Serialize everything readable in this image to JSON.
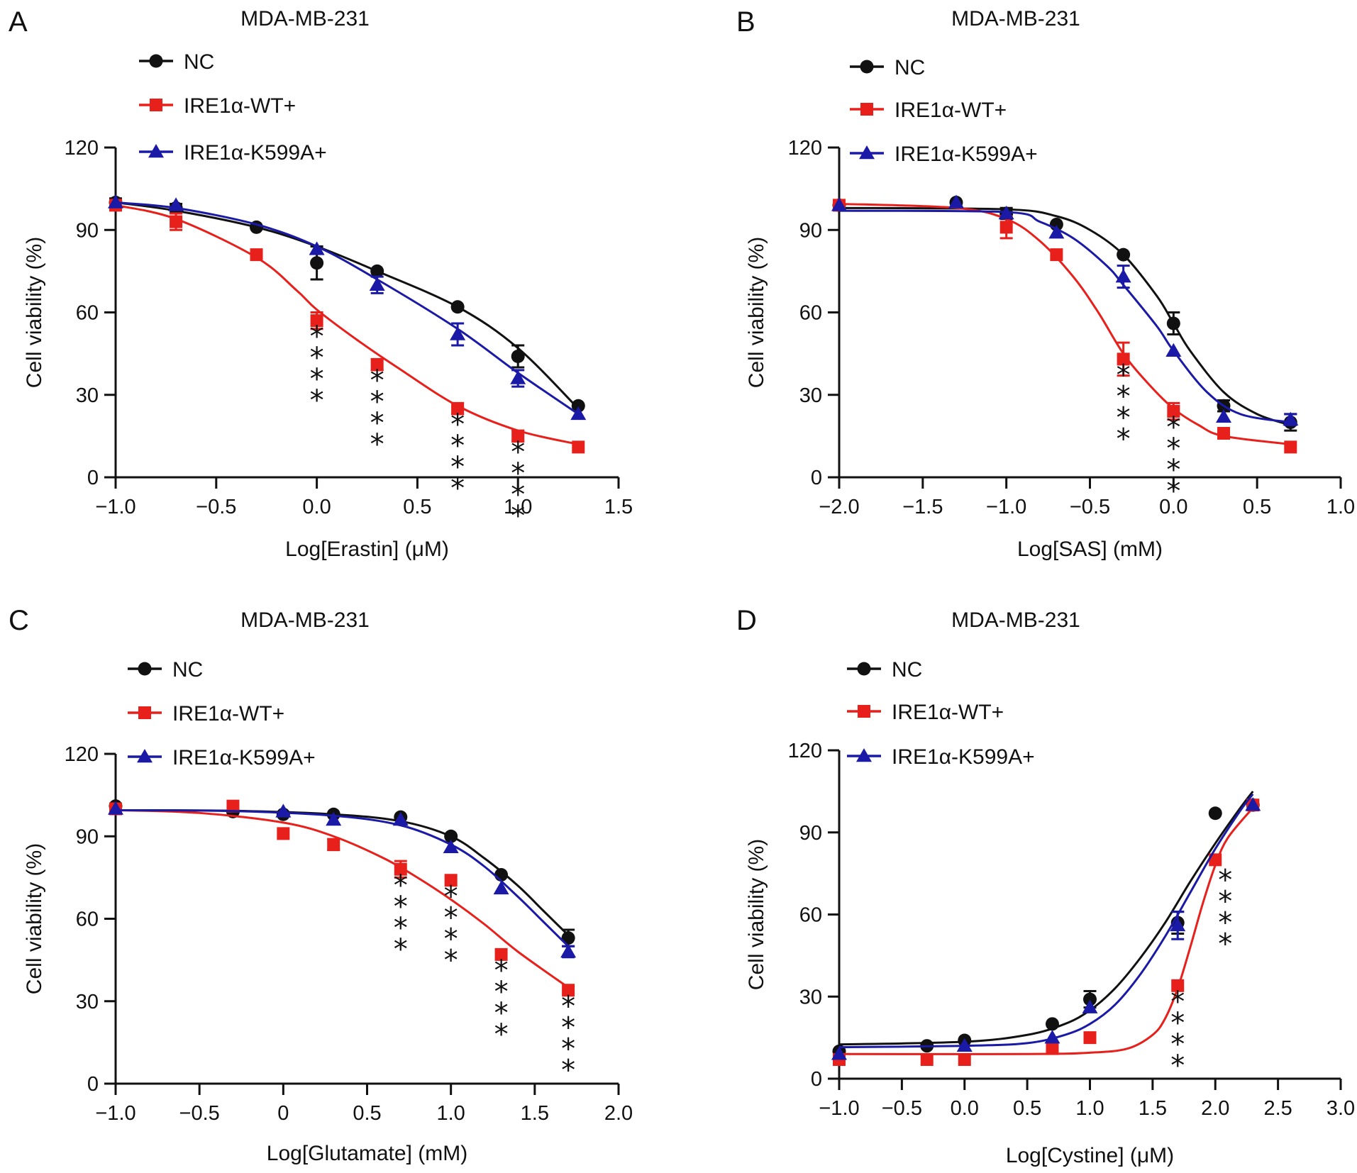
{
  "colors": {
    "NC": "#111111",
    "IRE1α-WT+": "#e8201c",
    "IRE1α-K599A+": "#1a1aa6"
  },
  "chart_data": [
    {
      "panel": "A",
      "type": "line",
      "title": "MDA-MB-231",
      "xlabel": "Log[Erastin] (μM)",
      "ylabel": "Cell viability (%)",
      "xlim": [
        -1.0,
        1.5
      ],
      "ylim": [
        0,
        120
      ],
      "xticks": [
        -1.0,
        -0.5,
        0.0,
        0.5,
        1.0,
        1.5
      ],
      "xtick_labels": [
        "−1.0",
        "−0.5",
        "0.0",
        "0.5",
        "1.0",
        "1.5"
      ],
      "yticks": [
        0,
        30,
        60,
        90,
        120
      ],
      "ytick_labels": [
        "0",
        "30",
        "60",
        "90",
        "120"
      ],
      "legend": [
        "NC",
        "IRE1α-WT+",
        "IRE1α-K599A+"
      ],
      "series": [
        {
          "name": "NC",
          "marker": "circle",
          "x": [
            -1.0,
            -0.7,
            -0.3,
            0.0,
            0.3,
            0.7,
            1.0,
            1.3
          ],
          "y": [
            100,
            98,
            91,
            78,
            75,
            62,
            44,
            26
          ],
          "err": [
            1.5,
            1.5,
            1,
            6,
            1,
            1,
            4,
            1
          ],
          "curve": [
            [
              -1.0,
              100
            ],
            [
              -0.7,
              97
            ],
            [
              -0.3,
              91
            ],
            [
              0.0,
              84
            ],
            [
              0.3,
              75
            ],
            [
              0.7,
              62
            ],
            [
              1.0,
              47
            ],
            [
              1.3,
              25
            ]
          ]
        },
        {
          "name": "IRE1α-WT+",
          "marker": "square",
          "x": [
            -1.0,
            -0.7,
            -0.3,
            0.0,
            0.3,
            0.7,
            1.0,
            1.3
          ],
          "y": [
            99,
            93,
            81,
            57,
            41,
            25,
            15,
            11
          ],
          "err": [
            1,
            3,
            1,
            3,
            2,
            2,
            2,
            1
          ],
          "curve": [
            [
              -1.0,
              99
            ],
            [
              -0.7,
              94
            ],
            [
              -0.3,
              80
            ],
            [
              -0.1,
              68
            ],
            [
              0.0,
              61
            ],
            [
              0.2,
              50
            ],
            [
              0.4,
              40
            ],
            [
              0.7,
              26
            ],
            [
              1.0,
              17
            ],
            [
              1.3,
              12
            ]
          ]
        },
        {
          "name": "IRE1α-K599A+",
          "marker": "triangle",
          "x": [
            -1.0,
            -0.7,
            0.0,
            0.3,
            0.7,
            1.0,
            1.3
          ],
          "y": [
            100,
            99,
            83,
            70,
            52,
            36,
            23
          ],
          "err": [
            1,
            1,
            1,
            3,
            4,
            3,
            1
          ],
          "curve": [
            [
              -1.0,
              100
            ],
            [
              -0.7,
              98
            ],
            [
              -0.3,
              92
            ],
            [
              0.0,
              84
            ],
            [
              0.3,
              72
            ],
            [
              0.7,
              54
            ],
            [
              1.0,
              38
            ],
            [
              1.3,
              23
            ]
          ]
        }
      ],
      "annotations": [
        {
          "x": 0.0,
          "text": "****"
        },
        {
          "x": 0.3,
          "text": "****"
        },
        {
          "x": 0.7,
          "text": "****"
        },
        {
          "x": 1.0,
          "text": "****"
        }
      ]
    },
    {
      "panel": "B",
      "type": "line",
      "title": "MDA-MB-231",
      "xlabel": "Log[SAS] (mM)",
      "ylabel": "Cell viability (%)",
      "xlim": [
        -2.0,
        1.0
      ],
      "ylim": [
        0,
        120
      ],
      "xticks": [
        -2.0,
        -1.5,
        -1.0,
        -0.5,
        0.0,
        0.5,
        1.0
      ],
      "xtick_labels": [
        "−2.0",
        "−1.5",
        "−1.0",
        "−0.5",
        "0.0",
        "0.5",
        "1.0"
      ],
      "yticks": [
        0,
        30,
        60,
        90,
        120
      ],
      "ytick_labels": [
        "0",
        "30",
        "60",
        "90",
        "120"
      ],
      "legend": [
        "NC",
        "IRE1α-WT+",
        "IRE1α-K599A+"
      ],
      "series": [
        {
          "name": "NC",
          "marker": "circle",
          "x": [
            -2.0,
            -1.3,
            -1.0,
            -0.7,
            -0.3,
            0.0,
            0.3,
            0.7
          ],
          "y": [
            99,
            100,
            96,
            92,
            81,
            56,
            26,
            20
          ],
          "err": [
            1,
            1,
            2,
            1,
            1,
            4,
            2,
            3
          ],
          "curve": [
            [
              -2.0,
              98
            ],
            [
              -1.0,
              97.5
            ],
            [
              -0.7,
              95
            ],
            [
              -0.5,
              90
            ],
            [
              -0.3,
              81
            ],
            [
              -0.1,
              66
            ],
            [
              0.0,
              56
            ],
            [
              0.1,
              46
            ],
            [
              0.3,
              31
            ],
            [
              0.5,
              23
            ],
            [
              0.7,
              19
            ]
          ]
        },
        {
          "name": "IRE1α-WT+",
          "marker": "square",
          "x": [
            -2.0,
            -1.0,
            -0.7,
            -0.3,
            0.0,
            0.3,
            0.7
          ],
          "y": [
            99,
            91,
            81,
            43,
            24,
            16,
            11
          ],
          "err": [
            1,
            4,
            1,
            6,
            3,
            1,
            1
          ],
          "curve": [
            [
              -2.0,
              99.5
            ],
            [
              -1.3,
              98
            ],
            [
              -1.0,
              94
            ],
            [
              -0.8,
              86
            ],
            [
              -0.6,
              73
            ],
            [
              -0.45,
              60
            ],
            [
              -0.3,
              45
            ],
            [
              -0.15,
              34
            ],
            [
              0.0,
              25
            ],
            [
              0.15,
              19
            ],
            [
              0.3,
              15
            ],
            [
              0.7,
              12
            ]
          ]
        },
        {
          "name": "IRE1α-K599A+",
          "marker": "triangle",
          "x": [
            -2.0,
            -1.3,
            -1.0,
            -0.7,
            -0.3,
            0.0,
            0.3,
            0.7
          ],
          "y": [
            99,
            100,
            96,
            89,
            73,
            46,
            22,
            21
          ],
          "err": [
            1,
            1,
            1,
            1,
            4,
            1,
            1,
            2
          ],
          "curve": [
            [
              -2.0,
              97
            ],
            [
              -1.0,
              96.5
            ],
            [
              -0.8,
              93
            ],
            [
              -0.6,
              87
            ],
            [
              -0.4,
              77
            ],
            [
              -0.3,
              70
            ],
            [
              -0.1,
              55
            ],
            [
              0.0,
              46
            ],
            [
              0.2,
              31
            ],
            [
              0.4,
              23
            ],
            [
              0.7,
              20
            ]
          ]
        }
      ],
      "annotations": [
        {
          "x": -0.3,
          "text": "****"
        },
        {
          "x": 0.0,
          "text": "****"
        }
      ]
    },
    {
      "panel": "C",
      "type": "line",
      "title": "MDA-MB-231",
      "xlabel": "Log[Glutamate] (mM)",
      "ylabel": "Cell viability (%)",
      "xlim": [
        -1.0,
        2.0
      ],
      "ylim": [
        0,
        120
      ],
      "xticks": [
        -1.0,
        -0.5,
        0.0,
        0.5,
        1.0,
        1.5,
        2.0
      ],
      "xtick_labels": [
        "−1.0",
        "−0.5",
        "0",
        "0.5",
        "1.0",
        "1.5",
        "2.0"
      ],
      "yticks": [
        0,
        30,
        60,
        90,
        120
      ],
      "ytick_labels": [
        "0",
        "30",
        "60",
        "90",
        "120"
      ],
      "legend": [
        "NC",
        "IRE1α-WT+",
        "IRE1α-K599A+"
      ],
      "series": [
        {
          "name": "NC",
          "marker": "circle",
          "x": [
            -1.0,
            -0.3,
            0.0,
            0.3,
            0.7,
            1.0,
            1.3,
            1.7
          ],
          "y": [
            101,
            99,
            98,
            98,
            97,
            90,
            76,
            53
          ],
          "err": [
            1,
            1,
            1,
            1,
            1,
            1,
            1,
            3
          ],
          "curve": [
            [
              -1.0,
              99.5
            ],
            [
              -0.3,
              99.3
            ],
            [
              0.3,
              98
            ],
            [
              0.7,
              95.5
            ],
            [
              1.0,
              90
            ],
            [
              1.2,
              82
            ],
            [
              1.4,
              72
            ],
            [
              1.55,
              63
            ],
            [
              1.7,
              54
            ]
          ]
        },
        {
          "name": "IRE1α-WT+",
          "marker": "square",
          "x": [
            -1.0,
            -0.3,
            0.0,
            0.3,
            0.7,
            1.0,
            1.3,
            1.7
          ],
          "y": [
            100,
            101,
            91,
            87,
            78,
            74,
            47,
            34
          ],
          "err": [
            1,
            1,
            1,
            2,
            3,
            1,
            1,
            1
          ],
          "curve": [
            [
              -1.0,
              99.5
            ],
            [
              -0.5,
              98.5
            ],
            [
              0.0,
              95
            ],
            [
              0.3,
              90
            ],
            [
              0.6,
              82
            ],
            [
              0.8,
              75
            ],
            [
              1.0,
              67
            ],
            [
              1.2,
              58
            ],
            [
              1.4,
              48
            ],
            [
              1.7,
              35
            ]
          ]
        },
        {
          "name": "IRE1α-K599A+",
          "marker": "triangle",
          "x": [
            -1.0,
            0.0,
            0.3,
            0.7,
            1.0,
            1.3,
            1.7
          ],
          "y": [
            100,
            99,
            96,
            96,
            86,
            71,
            48
          ],
          "err": [
            1,
            1,
            1,
            1,
            1,
            1,
            2
          ],
          "curve": [
            [
              -1.0,
              99.5
            ],
            [
              -0.3,
              99.2
            ],
            [
              0.3,
              97.5
            ],
            [
              0.7,
              94
            ],
            [
              1.0,
              87
            ],
            [
              1.2,
              79
            ],
            [
              1.4,
              68
            ],
            [
              1.55,
              59
            ],
            [
              1.7,
              50
            ]
          ]
        }
      ],
      "annotations": [
        {
          "x": 0.7,
          "text": "****"
        },
        {
          "x": 1.0,
          "text": "****"
        },
        {
          "x": 1.3,
          "text": "****"
        },
        {
          "x": 1.7,
          "text": "****"
        }
      ]
    },
    {
      "panel": "D",
      "type": "line",
      "title": "MDA-MB-231",
      "xlabel": "Log[Cystine] (μM)",
      "ylabel": "Cell viability (%)",
      "xlim": [
        -1.0,
        3.0
      ],
      "ylim": [
        0,
        120
      ],
      "xticks": [
        -1.0,
        -0.5,
        0.0,
        0.5,
        1.0,
        1.5,
        2.0,
        2.5,
        3.0
      ],
      "xtick_labels": [
        "−1.0",
        "−0.5",
        "0.0",
        "0.5",
        "1.0",
        "1.5",
        "2.0",
        "2.5",
        "3.0"
      ],
      "yticks": [
        0,
        30,
        60,
        90,
        120
      ],
      "ytick_labels": [
        "0",
        "30",
        "60",
        "90",
        "120"
      ],
      "legend": [
        "NC",
        "IRE1α-WT+",
        "IRE1α-K599A+"
      ],
      "series": [
        {
          "name": "NC",
          "marker": "circle",
          "x": [
            -1.0,
            -0.3,
            0.0,
            0.7,
            1.0,
            1.7,
            2.0,
            2.3
          ],
          "y": [
            10,
            12,
            14,
            20,
            29,
            57,
            97,
            100
          ],
          "err": [
            1,
            1,
            1,
            1,
            3,
            4,
            1,
            1
          ],
          "curve": [
            [
              -1.0,
              12.5
            ],
            [
              0.0,
              13.5
            ],
            [
              0.5,
              16
            ],
            [
              0.8,
              20
            ],
            [
              1.0,
              25
            ],
            [
              1.2,
              33
            ],
            [
              1.4,
              44
            ],
            [
              1.6,
              57
            ],
            [
              1.8,
              72
            ],
            [
              2.0,
              86
            ],
            [
              2.2,
              99
            ],
            [
              2.3,
              105
            ]
          ]
        },
        {
          "name": "IRE1α-WT+",
          "marker": "square",
          "x": [
            -1.0,
            -0.3,
            0.0,
            0.7,
            1.0,
            1.7,
            2.0,
            2.3
          ],
          "y": [
            7,
            7,
            7,
            11,
            15,
            34,
            80,
            100
          ],
          "err": [
            1,
            1,
            1,
            1,
            1,
            1,
            1,
            1
          ],
          "curve": [
            [
              -1.0,
              9
            ],
            [
              0.5,
              9
            ],
            [
              1.0,
              9.5
            ],
            [
              1.3,
              11
            ],
            [
              1.5,
              16
            ],
            [
              1.6,
              22
            ],
            [
              1.7,
              33
            ],
            [
              1.8,
              48
            ],
            [
              1.9,
              64
            ],
            [
              2.0,
              78
            ],
            [
              2.1,
              88
            ],
            [
              2.3,
              99
            ]
          ]
        },
        {
          "name": "IRE1α-K599A+",
          "marker": "triangle",
          "x": [
            -1.0,
            0.0,
            0.7,
            1.0,
            1.7,
            2.3
          ],
          "y": [
            9,
            12,
            15,
            26,
            56,
            100
          ],
          "err": [
            1,
            1,
            1,
            1,
            5,
            1
          ],
          "curve": [
            [
              -1.0,
              11.5
            ],
            [
              0.0,
              12
            ],
            [
              0.5,
              13
            ],
            [
              0.8,
              16
            ],
            [
              1.0,
              20
            ],
            [
              1.2,
              27
            ],
            [
              1.4,
              38
            ],
            [
              1.6,
              52
            ],
            [
              1.8,
              68
            ],
            [
              2.0,
              84
            ],
            [
              2.2,
              98
            ],
            [
              2.3,
              104
            ]
          ]
        }
      ],
      "annotations": [
        {
          "x": 1.7,
          "text": "****"
        },
        {
          "x": 2.0,
          "text": "****"
        }
      ]
    }
  ]
}
